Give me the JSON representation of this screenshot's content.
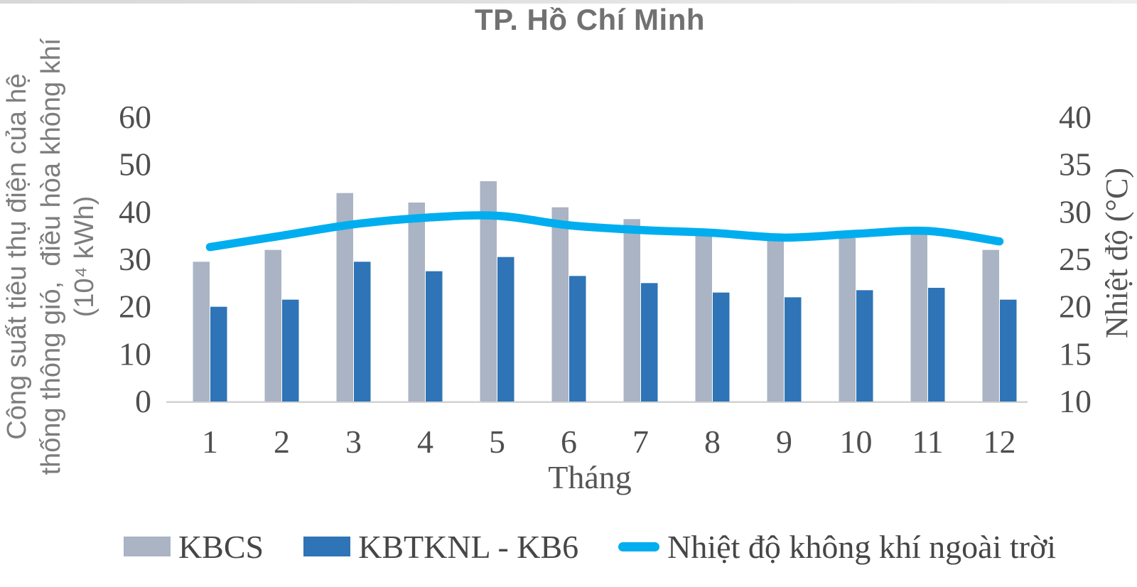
{
  "figure": {
    "title": "TP. Hồ Chí Minh"
  },
  "chart_data": {
    "type": "combo-bar-line",
    "title": "TP. Hồ Chí Minh",
    "categories": [
      "1",
      "2",
      "3",
      "4",
      "5",
      "6",
      "7",
      "8",
      "9",
      "10",
      "11",
      "12"
    ],
    "bar_series": [
      {
        "name": "KBCS",
        "color": "#aab4c4",
        "values": [
          29.5,
          32,
          44,
          42,
          46.5,
          41,
          38.5,
          35,
          34,
          34.5,
          36.5,
          32
        ]
      },
      {
        "name": "KBTKNL - KB6",
        "color": "#2e74b6",
        "values": [
          20,
          21.5,
          29.5,
          27.5,
          30.5,
          26.5,
          25,
          23,
          22,
          23.5,
          24,
          21.5
        ]
      }
    ],
    "line_series": [
      {
        "name": "Nhiệt độ không khí ngoài trời",
        "color": "#00aeef",
        "axis": "right",
        "values": [
          26.3,
          27.5,
          28.7,
          29.4,
          29.6,
          28.6,
          28.1,
          27.8,
          27.3,
          27.7,
          28.0,
          26.9
        ]
      }
    ],
    "left_axis": {
      "title_lines": [
        "Công suất tiêu thụ điện của hệ",
        "thống thông gió,  điều hòa không khí",
        "(10⁴ kWh)"
      ],
      "ticks": [
        0,
        10,
        20,
        30,
        40,
        50,
        60
      ],
      "range": [
        0,
        60
      ]
    },
    "right_axis": {
      "title": "Nhiệt độ (°C)",
      "ticks": [
        10,
        15,
        20,
        25,
        30,
        35,
        40
      ],
      "range": [
        10,
        40
      ]
    },
    "x_axis": {
      "title": "Tháng",
      "ticks": [
        "1",
        "2",
        "3",
        "4",
        "5",
        "6",
        "7",
        "8",
        "9",
        "10",
        "11",
        "12"
      ]
    },
    "grid": false,
    "legend_position": "bottom",
    "axis_line_color": "#d2d2d2",
    "text_color": "#4f4f4f"
  }
}
